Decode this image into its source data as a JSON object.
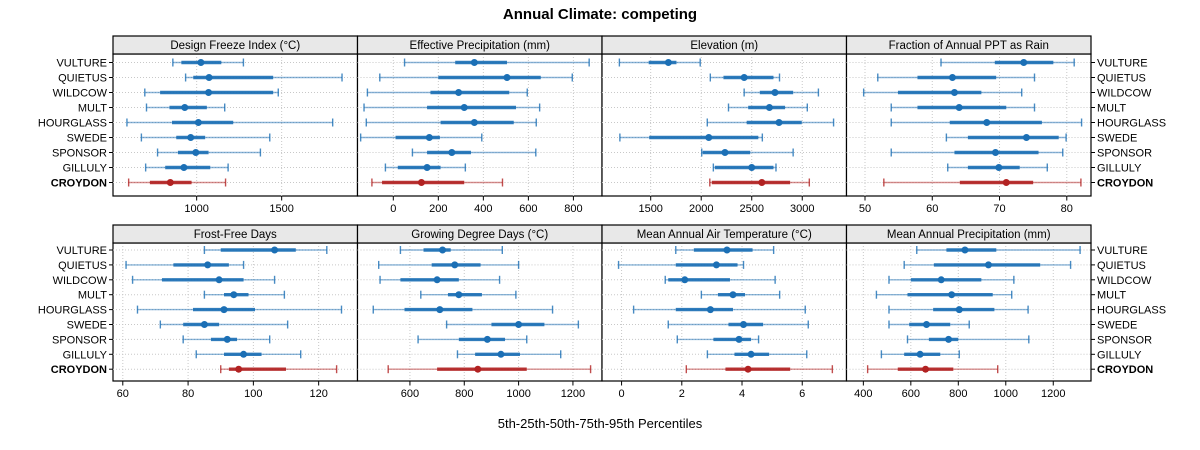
{
  "title": "Annual Climate: competing",
  "footer": "5th-25th-50th-75th-95th Percentiles",
  "stations": [
    "VULTURE",
    "QUIETUS",
    "WILDCOW",
    "MULT",
    "HOURGLASS",
    "SWEDE",
    "SPONSOR",
    "GILLULY",
    "CROYDON"
  ],
  "highlight_station": "CROYDON",
  "percentile_labels": [
    "5th",
    "25th",
    "50th",
    "75th",
    "95th"
  ],
  "colors": {
    "series": "#1B6FB5",
    "highlight": "#B22222",
    "header_bg": "#E8E8E8",
    "grid": "#C8C8C8",
    "border": "#000000",
    "text": "#000000"
  },
  "chart_data": [
    {
      "type": "dotplot-percentiles",
      "title": "Design Freeze Index (°C)",
      "row": 0,
      "col": 0,
      "xlim": [
        508,
        1946
      ],
      "ticks": [
        1000,
        1500
      ],
      "series": [
        {
          "name": "VULTURE",
          "values": [
            860,
            910,
            1025,
            1145,
            1275
          ]
        },
        {
          "name": "QUIETUS",
          "values": [
            935,
            980,
            1073,
            1450,
            1855
          ]
        },
        {
          "name": "WILDCOW",
          "values": [
            695,
            785,
            1070,
            1450,
            1480
          ]
        },
        {
          "name": "MULT",
          "values": [
            705,
            840,
            930,
            1060,
            1165
          ]
        },
        {
          "name": "HOURGLASS",
          "values": [
            590,
            855,
            1010,
            1215,
            1800
          ]
        },
        {
          "name": "SWEDE",
          "values": [
            675,
            880,
            965,
            1050,
            1430
          ]
        },
        {
          "name": "SPONSOR",
          "values": [
            770,
            890,
            995,
            1070,
            1375
          ]
        },
        {
          "name": "GILLULY",
          "values": [
            700,
            815,
            925,
            1080,
            1185
          ]
        },
        {
          "name": "CROYDON",
          "values": [
            600,
            725,
            845,
            970,
            1170
          ]
        }
      ]
    },
    {
      "type": "dotplot-percentiles",
      "title": "Effective Precipitation (mm)",
      "row": 0,
      "col": 1,
      "xlim": [
        -159,
        927
      ],
      "ticks": [
        0,
        200,
        400,
        600,
        800
      ],
      "series": [
        {
          "name": "VULTURE",
          "values": [
            50,
            275,
            360,
            505,
            870
          ]
        },
        {
          "name": "QUIETUS",
          "values": [
            -60,
            200,
            505,
            655,
            795
          ]
        },
        {
          "name": "WILDCOW",
          "values": [
            -115,
            165,
            290,
            515,
            595
          ]
        },
        {
          "name": "MULT",
          "values": [
            -130,
            150,
            315,
            545,
            650
          ]
        },
        {
          "name": "HOURGLASS",
          "values": [
            -120,
            210,
            360,
            535,
            635
          ]
        },
        {
          "name": "SWEDE",
          "values": [
            -145,
            10,
            160,
            207,
            393
          ]
        },
        {
          "name": "SPONSOR",
          "values": [
            85,
            150,
            260,
            345,
            633
          ]
        },
        {
          "name": "GILLULY",
          "values": [
            -35,
            20,
            150,
            210,
            320
          ]
        },
        {
          "name": "CROYDON",
          "values": [
            -95,
            -50,
            125,
            315,
            485
          ]
        }
      ]
    },
    {
      "type": "dotplot-percentiles",
      "title": "Elevation (m)",
      "row": 0,
      "col": 2,
      "xlim": [
        1018,
        3438
      ],
      "ticks": [
        1500,
        2000,
        2500,
        3000
      ],
      "series": [
        {
          "name": "VULTURE",
          "values": [
            1190,
            1480,
            1675,
            1755,
            1990
          ]
        },
        {
          "name": "QUIETUS",
          "values": [
            2090,
            2220,
            2425,
            2715,
            2775
          ]
        },
        {
          "name": "WILDCOW",
          "values": [
            2425,
            2580,
            2730,
            2910,
            3160
          ]
        },
        {
          "name": "MULT",
          "values": [
            2270,
            2465,
            2675,
            2830,
            3050
          ]
        },
        {
          "name": "HOURGLASS",
          "values": [
            2060,
            2450,
            2770,
            2995,
            3310
          ]
        },
        {
          "name": "SWEDE",
          "values": [
            1195,
            1485,
            2075,
            2565,
            2605
          ]
        },
        {
          "name": "SPONSOR",
          "values": [
            2005,
            2015,
            2235,
            2485,
            2910
          ]
        },
        {
          "name": "GILLULY",
          "values": [
            2120,
            2135,
            2500,
            2715,
            2740
          ]
        },
        {
          "name": "CROYDON",
          "values": [
            2085,
            2105,
            2600,
            2880,
            3070
          ]
        }
      ]
    },
    {
      "type": "dotplot-percentiles",
      "title": "Fraction of Annual PPT as Rain",
      "row": 0,
      "col": 3,
      "xlim": [
        47.25,
        83.6
      ],
      "ticks": [
        50,
        60,
        70,
        80
      ],
      "series": [
        {
          "name": "VULTURE",
          "values": [
            61.3,
            69.3,
            73.6,
            78.0,
            81.1
          ]
        },
        {
          "name": "QUIETUS",
          "values": [
            51.9,
            57.8,
            63.0,
            69.5,
            75.2
          ]
        },
        {
          "name": "WILDCOW",
          "values": [
            49.8,
            54.9,
            63.3,
            67.3,
            73.3
          ]
        },
        {
          "name": "MULT",
          "values": [
            53.9,
            57.8,
            64.0,
            71.0,
            75.2
          ]
        },
        {
          "name": "HOURGLASS",
          "values": [
            53.9,
            62.6,
            68.1,
            76.3,
            82.2
          ]
        },
        {
          "name": "SWEDE",
          "values": [
            62.1,
            65.3,
            74.0,
            78.8,
            79.9
          ]
        },
        {
          "name": "SPONSOR",
          "values": [
            53.9,
            63.3,
            69.4,
            75.8,
            79.4
          ]
        },
        {
          "name": "GILLULY",
          "values": [
            62.3,
            65.3,
            69.9,
            73.0,
            77.1
          ]
        },
        {
          "name": "CROYDON",
          "values": [
            52.8,
            64.1,
            71.0,
            75.0,
            82.1
          ]
        }
      ]
    },
    {
      "type": "dotplot-percentiles",
      "title": "Frost-Free Days",
      "row": 1,
      "col": 0,
      "xlim": [
        57,
        131.9
      ],
      "ticks": [
        60,
        80,
        100,
        120
      ],
      "series": [
        {
          "name": "VULTURE",
          "values": [
            85,
            90,
            106.5,
            113,
            122.5
          ]
        },
        {
          "name": "QUIETUS",
          "values": [
            61,
            75.5,
            86,
            92.5,
            97
          ]
        },
        {
          "name": "WILDCOW",
          "values": [
            63,
            72,
            89.5,
            97,
            106.5
          ]
        },
        {
          "name": "MULT",
          "values": [
            85,
            91,
            94,
            98.5,
            109.5
          ]
        },
        {
          "name": "HOURGLASS",
          "values": [
            64.5,
            81.5,
            91,
            100.5,
            127
          ]
        },
        {
          "name": "SWEDE",
          "values": [
            71.5,
            78.5,
            85,
            89.5,
            110.5
          ]
        },
        {
          "name": "SPONSOR",
          "values": [
            78.5,
            87,
            92,
            95,
            105
          ]
        },
        {
          "name": "GILLULY",
          "values": [
            82.5,
            91,
            97,
            102.5,
            114.5
          ]
        },
        {
          "name": "CROYDON",
          "values": [
            90,
            92.5,
            95.5,
            110,
            125.5
          ]
        }
      ]
    },
    {
      "type": "dotplot-percentiles",
      "title": "Growing Degree Days (°C)",
      "row": 1,
      "col": 1,
      "xlim": [
        407,
        1307
      ],
      "ticks": [
        600,
        800,
        1000,
        1200
      ],
      "series": [
        {
          "name": "VULTURE",
          "values": [
            565,
            650,
            720,
            750,
            940
          ]
        },
        {
          "name": "QUIETUS",
          "values": [
            485,
            680,
            765,
            860,
            1000
          ]
        },
        {
          "name": "WILDCOW",
          "values": [
            490,
            565,
            700,
            780,
            930
          ]
        },
        {
          "name": "MULT",
          "values": [
            640,
            740,
            780,
            865,
            990
          ]
        },
        {
          "name": "HOURGLASS",
          "values": [
            465,
            580,
            710,
            830,
            1125
          ]
        },
        {
          "name": "SWEDE",
          "values": [
            735,
            900,
            1000,
            1095,
            1220
          ]
        },
        {
          "name": "SPONSOR",
          "values": [
            630,
            780,
            885,
            950,
            1030
          ]
        },
        {
          "name": "GILLULY",
          "values": [
            775,
            840,
            935,
            1005,
            1155
          ]
        },
        {
          "name": "CROYDON",
          "values": [
            520,
            700,
            850,
            1030,
            1265
          ]
        }
      ]
    },
    {
      "type": "dotplot-percentiles",
      "title": "Mean Annual Air Temperature (°C)",
      "row": 1,
      "col": 2,
      "xlim": [
        -0.65,
        7.47
      ],
      "ticks": [
        0,
        2,
        4,
        6
      ],
      "series": [
        {
          "name": "VULTURE",
          "values": [
            1.8,
            2.4,
            3.5,
            4.35,
            5.05
          ]
        },
        {
          "name": "QUIETUS",
          "values": [
            -0.1,
            1.8,
            3.15,
            3.85,
            4.05
          ]
        },
        {
          "name": "WILDCOW",
          "values": [
            1.45,
            1.55,
            2.1,
            3.6,
            5.1
          ]
        },
        {
          "name": "MULT",
          "values": [
            2.65,
            3.2,
            3.7,
            4.1,
            5.25
          ]
        },
        {
          "name": "HOURGLASS",
          "values": [
            0.4,
            1.8,
            2.95,
            3.7,
            6.1
          ]
        },
        {
          "name": "SWEDE",
          "values": [
            1.55,
            3.55,
            4.05,
            4.7,
            6.2
          ]
        },
        {
          "name": "SPONSOR",
          "values": [
            1.85,
            3.05,
            3.9,
            4.3,
            4.55
          ]
        },
        {
          "name": "GILLULY",
          "values": [
            2.85,
            3.75,
            4.3,
            4.9,
            6.15
          ]
        },
        {
          "name": "CROYDON",
          "values": [
            2.15,
            3.45,
            4.2,
            5.6,
            7.0
          ]
        }
      ]
    },
    {
      "type": "dotplot-percentiles",
      "title": "Mean Annual Precipitation (mm)",
      "row": 1,
      "col": 3,
      "xlim": [
        329,
        1359
      ],
      "ticks": [
        400,
        600,
        800,
        1000,
        1200
      ],
      "series": [
        {
          "name": "VULTURE",
          "values": [
            625,
            750,
            828,
            960,
            1313
          ]
        },
        {
          "name": "QUIETUS",
          "values": [
            572,
            697,
            927,
            1145,
            1273
          ]
        },
        {
          "name": "WILDCOW",
          "values": [
            508,
            600,
            728,
            897,
            1034
          ]
        },
        {
          "name": "MULT",
          "values": [
            455,
            586,
            772,
            945,
            1025
          ]
        },
        {
          "name": "HOURGLASS",
          "values": [
            508,
            694,
            804,
            952,
            1094
          ]
        },
        {
          "name": "SWEDE",
          "values": [
            508,
            593,
            666,
            766,
            846
          ]
        },
        {
          "name": "SPONSOR",
          "values": [
            586,
            676,
            759,
            800,
            1097
          ]
        },
        {
          "name": "GILLULY",
          "values": [
            476,
            572,
            639,
            724,
            804
          ]
        },
        {
          "name": "CROYDON",
          "values": [
            418,
            545,
            662,
            779,
            966
          ]
        }
      ]
    }
  ]
}
